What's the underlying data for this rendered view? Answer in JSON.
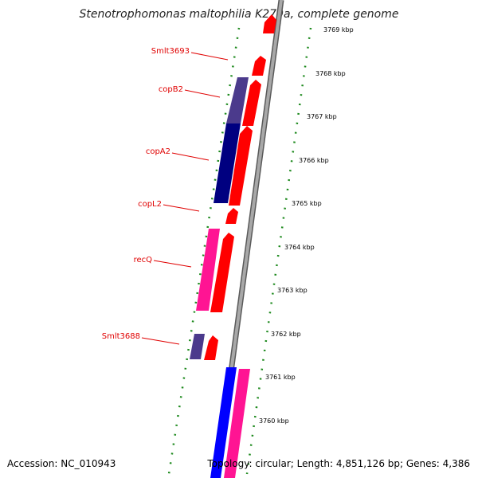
{
  "title": "Stenotrophomonas maltophilia K279a, complete genome",
  "accession": "Accession: NC_010943",
  "topology": "Topology: circular; Length: 4,851,126 bp; Genes: 4,386",
  "colors": {
    "backbone": "#8a8a8a",
    "tick": "#1e8a1e",
    "label": "#e00000",
    "forward_gene": "#ff0000",
    "reverse_gene_dark": "#000080",
    "reverse_gene_mid": "#4b3a8c",
    "magenta_gene": "#ff1493",
    "blue_gene": "#0000ff"
  },
  "scale": [
    {
      "kbp": "3769 kbp"
    },
    {
      "kbp": "3768 kbp"
    },
    {
      "kbp": "3767 kbp"
    },
    {
      "kbp": "3766 kbp"
    },
    {
      "kbp": "3765 kbp"
    },
    {
      "kbp": "3764 kbp"
    },
    {
      "kbp": "3763 kbp"
    },
    {
      "kbp": "3762 kbp"
    },
    {
      "kbp": "3761 kbp"
    },
    {
      "kbp": "3760 kbp"
    }
  ],
  "genes": [
    {
      "name": "Smlt3693",
      "strand": "forward"
    },
    {
      "name": "copB2",
      "strand": "forward"
    },
    {
      "name": "copA2",
      "strand": "forward"
    },
    {
      "name": "copL2",
      "strand": "forward"
    },
    {
      "name": "recQ",
      "strand": "reverse"
    },
    {
      "name": "Smlt3688",
      "strand": "reverse"
    }
  ]
}
